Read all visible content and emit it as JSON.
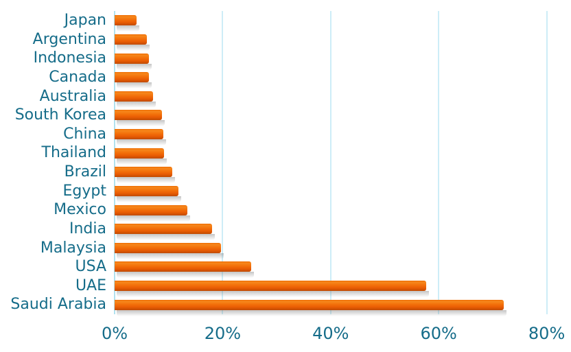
{
  "chart_data": {
    "type": "bar",
    "orientation": "horizontal",
    "title": "",
    "xlabel": "",
    "ylabel": "",
    "categories": [
      "Japan",
      "Argentina",
      "Indonesia",
      "Canada",
      "Australia",
      "South Korea",
      "China",
      "Thailand",
      "Brazil",
      "Egypt",
      "Mexico",
      "India",
      "Malaysia",
      "USA",
      "UAE",
      "Saudi Arabia"
    ],
    "values": [
      4.1,
      6.0,
      6.3,
      6.3,
      7.1,
      8.8,
      9.0,
      9.2,
      10.7,
      11.8,
      13.5,
      18.0,
      19.7,
      25.3,
      57.7,
      72.0
    ],
    "value_unit": "%",
    "x_ticks": [
      0,
      20,
      40,
      60,
      80
    ],
    "x_tick_labels": [
      "0%",
      "20%",
      "40%",
      "60%",
      "80%"
    ],
    "xlim": [
      0,
      84.5
    ],
    "grid": "vertical-gridlines",
    "legend": "none"
  },
  "style": {
    "background": "#ffffff",
    "label_color": "#156c89",
    "gridline_color": "#cdedf7",
    "axis_line_color": "#b0e1ef",
    "bar_color_top": "#f6871c",
    "bar_color_bottom": "#bf4a01"
  }
}
